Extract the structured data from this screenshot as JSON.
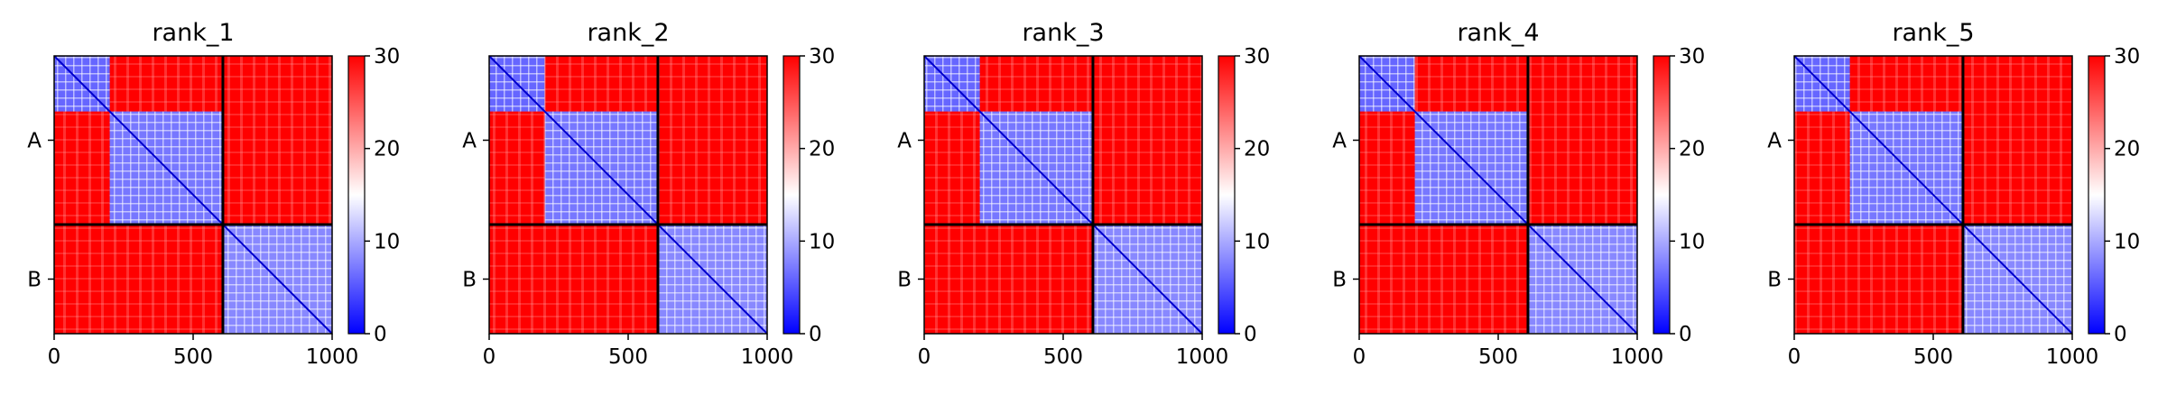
{
  "chart_data": [
    {
      "type": "heatmap",
      "title": "rank_1",
      "x_ticks": [
        0,
        500,
        1000
      ],
      "xlim": [
        0,
        1000
      ],
      "chain_labels": [
        "A",
        "B"
      ],
      "chain_boundary": 607,
      "colorbar": {
        "ticks": [
          0,
          10,
          20,
          30
        ],
        "vmin": 0,
        "vmax": 30,
        "colors": [
          "#0000ff",
          "#ffffff",
          "#ff0000"
        ]
      },
      "blocks_low_error": [
        {
          "from": 0,
          "to": 200,
          "value": 6
        },
        {
          "from": 200,
          "to": 607,
          "value": 7
        },
        {
          "from": 607,
          "to": 1000,
          "value": 8
        }
      ]
    },
    {
      "type": "heatmap",
      "title": "rank_2",
      "x_ticks": [
        0,
        500,
        1000
      ],
      "xlim": [
        0,
        1000
      ],
      "chain_labels": [
        "A",
        "B"
      ],
      "chain_boundary": 607,
      "colorbar": {
        "ticks": [
          0,
          10,
          20,
          30
        ],
        "vmin": 0,
        "vmax": 30,
        "colors": [
          "#0000ff",
          "#ffffff",
          "#ff0000"
        ]
      },
      "blocks_low_error": [
        {
          "from": 0,
          "to": 200,
          "value": 6
        },
        {
          "from": 200,
          "to": 607,
          "value": 7
        },
        {
          "from": 607,
          "to": 1000,
          "value": 8
        }
      ]
    },
    {
      "type": "heatmap",
      "title": "rank_3",
      "x_ticks": [
        0,
        500,
        1000
      ],
      "xlim": [
        0,
        1000
      ],
      "chain_labels": [
        "A",
        "B"
      ],
      "chain_boundary": 607,
      "colorbar": {
        "ticks": [
          0,
          10,
          20,
          30
        ],
        "vmin": 0,
        "vmax": 30,
        "colors": [
          "#0000ff",
          "#ffffff",
          "#ff0000"
        ]
      },
      "blocks_low_error": [
        {
          "from": 0,
          "to": 200,
          "value": 6
        },
        {
          "from": 200,
          "to": 607,
          "value": 7
        },
        {
          "from": 607,
          "to": 1000,
          "value": 8
        }
      ]
    },
    {
      "type": "heatmap",
      "title": "rank_4",
      "x_ticks": [
        0,
        500,
        1000
      ],
      "xlim": [
        0,
        1000
      ],
      "chain_labels": [
        "A",
        "B"
      ],
      "chain_boundary": 607,
      "colorbar": {
        "ticks": [
          0,
          10,
          20,
          30
        ],
        "vmin": 0,
        "vmax": 30,
        "colors": [
          "#0000ff",
          "#ffffff",
          "#ff0000"
        ]
      },
      "blocks_low_error": [
        {
          "from": 0,
          "to": 200,
          "value": 6
        },
        {
          "from": 200,
          "to": 607,
          "value": 7
        },
        {
          "from": 607,
          "to": 1000,
          "value": 8
        }
      ]
    },
    {
      "type": "heatmap",
      "title": "rank_5",
      "x_ticks": [
        0,
        500,
        1000
      ],
      "xlim": [
        0,
        1000
      ],
      "chain_labels": [
        "A",
        "B"
      ],
      "chain_boundary": 607,
      "colorbar": {
        "ticks": [
          0,
          10,
          20,
          30
        ],
        "vmin": 0,
        "vmax": 30,
        "colors": [
          "#0000ff",
          "#ffffff",
          "#ff0000"
        ]
      },
      "blocks_low_error": [
        {
          "from": 0,
          "to": 200,
          "value": 6
        },
        {
          "from": 200,
          "to": 607,
          "value": 7
        },
        {
          "from": 607,
          "to": 1000,
          "value": 8
        }
      ]
    }
  ]
}
